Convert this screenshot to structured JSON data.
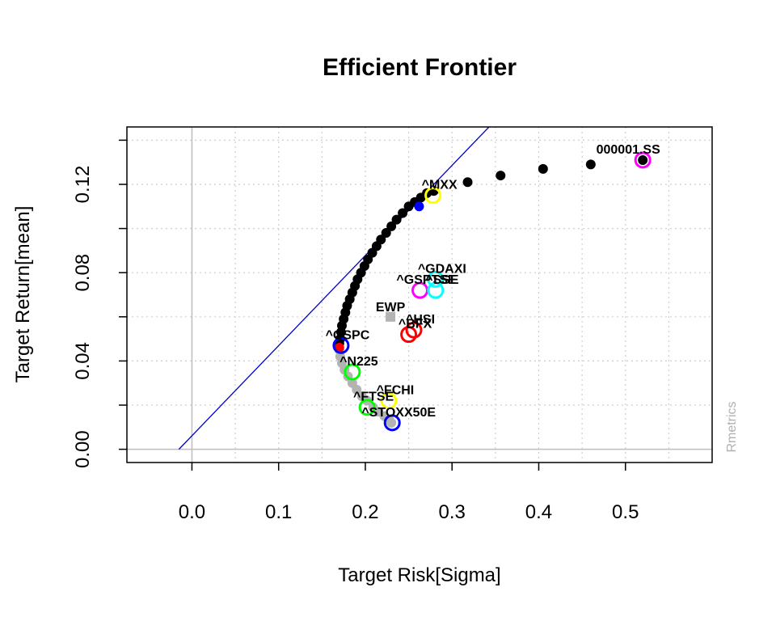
{
  "chart_data": {
    "type": "scatter",
    "title": "Efficient Frontier",
    "xlabel": "Target Risk[Sigma]",
    "ylabel": "Target Return[mean]",
    "xlim": [
      -0.075,
      0.6
    ],
    "ylim": [
      -0.006,
      0.146
    ],
    "xticks": [
      0.0,
      0.1,
      0.2,
      0.3,
      0.4,
      0.5
    ],
    "xtick_labels": [
      "0.0",
      "0.1",
      "0.2",
      "0.3",
      "0.4",
      "0.5"
    ],
    "yticks": [
      0.0,
      0.04,
      0.08,
      0.12
    ],
    "ytick_labels": [
      "0.00",
      "0.04",
      "0.08",
      "0.12"
    ],
    "grid": true,
    "credit": "Rmetrics",
    "colors": {
      "efficient": "#000000",
      "inefficient": "#b3b3b3",
      "tangency_line": "#0000cc",
      "min_variance": "#ff0000",
      "tangency": "#0000ff",
      "ewp": "#b3b3b3",
      "zero_lines": "#bebebe"
    },
    "tangency_line": {
      "x": [
        -0.015,
        0.35
      ],
      "y": [
        0.0,
        0.149
      ]
    },
    "efficient_frontier": {
      "x": [
        0.17,
        0.171,
        0.172,
        0.173,
        0.175,
        0.177,
        0.179,
        0.182,
        0.185,
        0.188,
        0.191,
        0.195,
        0.199,
        0.203,
        0.208,
        0.213,
        0.218,
        0.224,
        0.23,
        0.236,
        0.243,
        0.25,
        0.257,
        0.264,
        0.271,
        0.279,
        0.318,
        0.356,
        0.405,
        0.46,
        0.52
      ],
      "y": [
        0.048,
        0.05,
        0.053,
        0.056,
        0.059,
        0.062,
        0.065,
        0.068,
        0.071,
        0.074,
        0.077,
        0.08,
        0.083,
        0.086,
        0.089,
        0.092,
        0.095,
        0.098,
        0.101,
        0.104,
        0.107,
        0.11,
        0.112,
        0.114,
        0.116,
        0.117,
        0.121,
        0.124,
        0.127,
        0.129,
        0.131
      ]
    },
    "inefficient_frontier": {
      "x": [
        0.17,
        0.171,
        0.173,
        0.176,
        0.18,
        0.185,
        0.19,
        0.196,
        0.202,
        0.209,
        0.215,
        0.222,
        0.228,
        0.23
      ],
      "y": [
        0.045,
        0.042,
        0.039,
        0.036,
        0.033,
        0.03,
        0.027,
        0.024,
        0.022,
        0.019,
        0.017,
        0.015,
        0.013,
        0.012
      ]
    },
    "min_variance": {
      "x": 0.17,
      "y": 0.046
    },
    "tangency": {
      "x": 0.262,
      "y": 0.11
    },
    "ewp": {
      "label": "EWP",
      "x": 0.229,
      "y": 0.06
    },
    "assets": [
      {
        "label": "000001.SS",
        "x": 0.52,
        "y": 0.131,
        "color": "#ff00ff"
      },
      {
        "label": "^MXX",
        "x": 0.278,
        "y": 0.115,
        "color": "#ffff00"
      },
      {
        "label": "^GDAXI",
        "x": 0.281,
        "y": 0.077,
        "color": "#00ffff"
      },
      {
        "label": "^GSPTSE",
        "x": 0.263,
        "y": 0.072,
        "color": "#ff00ff"
      },
      {
        "label": "^SSE",
        "x": 0.281,
        "y": 0.072,
        "color": "#00ffff"
      },
      {
        "label": "^HSI",
        "x": 0.256,
        "y": 0.054,
        "color": "#ff0000"
      },
      {
        "label": "^BFX",
        "x": 0.25,
        "y": 0.052,
        "color": "#ff0000"
      },
      {
        "label": "^GSPC",
        "x": 0.172,
        "y": 0.047,
        "color": "#0000ff"
      },
      {
        "label": "^N225",
        "x": 0.185,
        "y": 0.035,
        "color": "#00ff00"
      },
      {
        "label": "^FCHI",
        "x": 0.227,
        "y": 0.022,
        "color": "#ffff00"
      },
      {
        "label": "^FTSE",
        "x": 0.202,
        "y": 0.019,
        "color": "#00ff00"
      },
      {
        "label": "^STOXX50E",
        "x": 0.231,
        "y": 0.012,
        "color": "#0000ff"
      }
    ]
  }
}
